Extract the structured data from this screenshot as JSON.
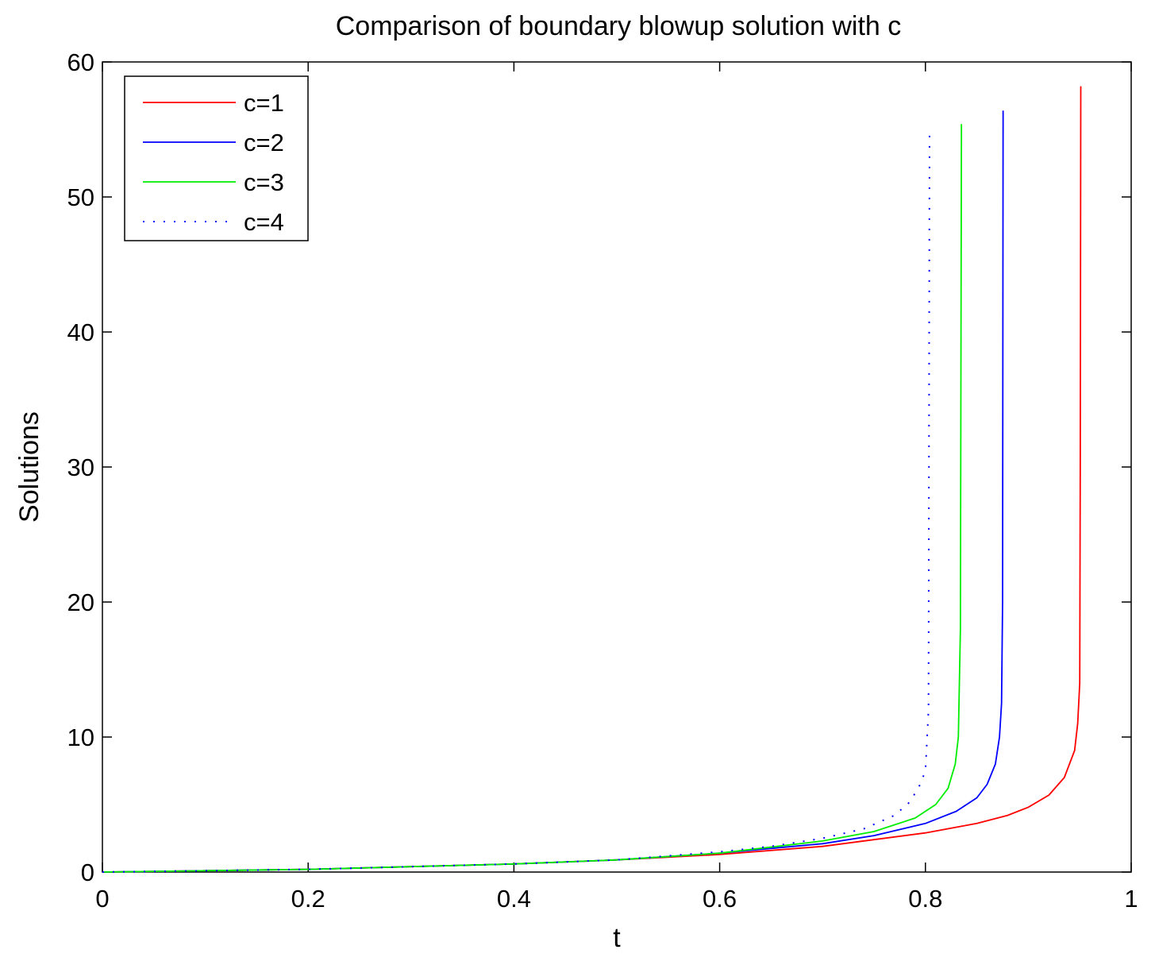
{
  "chart_data": {
    "type": "line",
    "title": "Comparison of boundary blowup solution with c",
    "xlabel": "t",
    "ylabel": "Solutions",
    "xlim": [
      0,
      1
    ],
    "ylim": [
      0,
      60
    ],
    "xticks": [
      0,
      0.2,
      0.4,
      0.6,
      0.8,
      1
    ],
    "xtick_labels": [
      "0",
      "0.2",
      "0.4",
      "0.6",
      "0.8",
      "1"
    ],
    "yticks": [
      0,
      10,
      20,
      30,
      40,
      50,
      60
    ],
    "ytick_labels": [
      "0",
      "10",
      "20",
      "30",
      "40",
      "50",
      "60"
    ],
    "grid": false,
    "legend_position": "top-left",
    "series": [
      {
        "name": "c=1",
        "color": "#ff0000",
        "style": "solid",
        "x": [
          0,
          0.1,
          0.2,
          0.3,
          0.4,
          0.5,
          0.6,
          0.7,
          0.75,
          0.8,
          0.85,
          0.88,
          0.9,
          0.92,
          0.935,
          0.945,
          0.948,
          0.95,
          0.9505,
          0.951
        ],
        "y": [
          0,
          0.1,
          0.2,
          0.4,
          0.6,
          0.9,
          1.3,
          1.9,
          2.4,
          2.9,
          3.6,
          4.2,
          4.8,
          5.7,
          7.0,
          9.0,
          11.0,
          14.0,
          30.0,
          58.2
        ]
      },
      {
        "name": "c=2",
        "color": "#0000ff",
        "style": "solid",
        "x": [
          0,
          0.1,
          0.2,
          0.3,
          0.4,
          0.5,
          0.6,
          0.7,
          0.75,
          0.8,
          0.83,
          0.85,
          0.86,
          0.868,
          0.872,
          0.874,
          0.875,
          0.8755
        ],
        "y": [
          0,
          0.1,
          0.2,
          0.4,
          0.6,
          0.9,
          1.4,
          2.1,
          2.7,
          3.6,
          4.5,
          5.5,
          6.5,
          8.0,
          10.0,
          12.5,
          20.0,
          56.4
        ]
      },
      {
        "name": "c=3",
        "color": "#00ee00",
        "style": "solid",
        "x": [
          0,
          0.1,
          0.2,
          0.3,
          0.4,
          0.5,
          0.6,
          0.7,
          0.75,
          0.79,
          0.81,
          0.822,
          0.829,
          0.832,
          0.834,
          0.835
        ],
        "y": [
          0,
          0.1,
          0.2,
          0.4,
          0.6,
          0.9,
          1.4,
          2.3,
          3.0,
          4.0,
          5.0,
          6.2,
          8.0,
          10.0,
          18.0,
          55.4
        ]
      },
      {
        "name": "c=4",
        "color": "#0000ff",
        "style": "dotted",
        "x": [
          0,
          0.1,
          0.2,
          0.3,
          0.4,
          0.5,
          0.6,
          0.65,
          0.7,
          0.74,
          0.77,
          0.785,
          0.795,
          0.8,
          0.803,
          0.804
        ],
        "y": [
          0,
          0.1,
          0.2,
          0.4,
          0.6,
          0.9,
          1.5,
          1.9,
          2.5,
          3.2,
          4.2,
          5.2,
          6.5,
          7.5,
          12.0,
          55.0
        ]
      }
    ]
  }
}
